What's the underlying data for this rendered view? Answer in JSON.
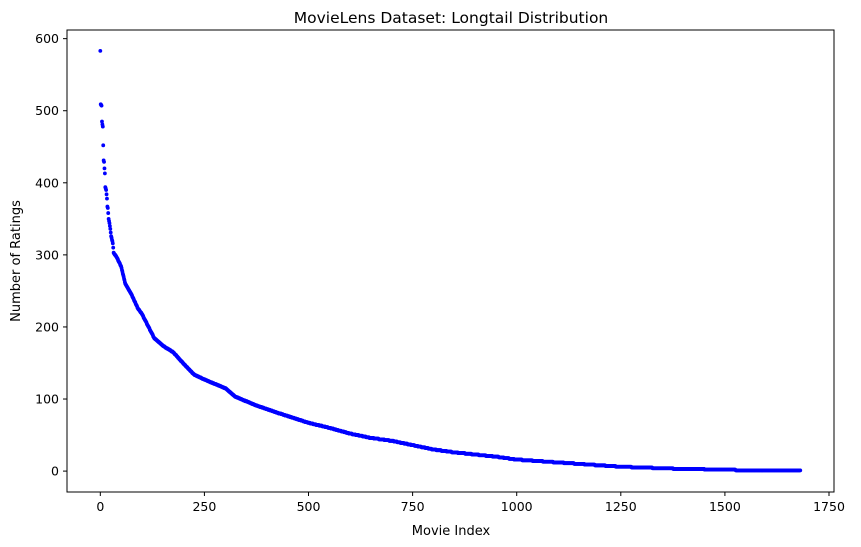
{
  "chart_data": {
    "type": "scatter",
    "title": "MovieLens Dataset: Longtail Distribution",
    "xlabel": "Movie Index",
    "ylabel": "Number of Ratings",
    "xlim": [
      -80,
      1762
    ],
    "ylim": [
      -29,
      612
    ],
    "xticks": [
      0,
      250,
      500,
      750,
      1000,
      1250,
      1500,
      1750
    ],
    "yticks": [
      0,
      100,
      200,
      300,
      400,
      500,
      600
    ],
    "grid": false,
    "legend": "none",
    "point_color": "#0000ff",
    "n_points": 1682,
    "decay_anchors": [
      [
        0,
        583
      ],
      [
        1,
        509
      ],
      [
        2,
        508
      ],
      [
        3,
        507
      ],
      [
        4,
        485
      ],
      [
        5,
        481
      ],
      [
        6,
        478
      ],
      [
        7,
        452
      ],
      [
        8,
        431
      ],
      [
        9,
        429
      ],
      [
        10,
        420
      ],
      [
        11,
        413
      ],
      [
        12,
        394
      ],
      [
        13,
        392
      ],
      [
        14,
        390
      ],
      [
        15,
        384
      ],
      [
        16,
        378
      ],
      [
        17,
        367
      ],
      [
        18,
        365
      ],
      [
        20,
        350
      ],
      [
        22,
        344
      ],
      [
        24,
        336
      ],
      [
        26,
        326
      ],
      [
        28,
        321
      ],
      [
        30,
        316
      ],
      [
        32,
        303
      ],
      [
        40,
        296
      ],
      [
        50,
        284
      ],
      [
        60,
        260
      ],
      [
        75,
        245
      ],
      [
        90,
        226
      ],
      [
        100,
        218
      ],
      [
        130,
        184
      ],
      [
        150,
        174
      ],
      [
        175,
        165
      ],
      [
        200,
        149
      ],
      [
        225,
        134
      ],
      [
        250,
        127
      ],
      [
        300,
        115
      ],
      [
        325,
        103
      ],
      [
        375,
        91
      ],
      [
        425,
        81
      ],
      [
        500,
        67
      ],
      [
        550,
        60
      ],
      [
        600,
        52
      ],
      [
        650,
        46
      ],
      [
        700,
        42
      ],
      [
        750,
        36
      ],
      [
        800,
        30
      ],
      [
        850,
        26
      ],
      [
        900,
        23
      ],
      [
        950,
        20
      ],
      [
        1000,
        16
      ],
      [
        1100,
        12
      ],
      [
        1200,
        8
      ],
      [
        1250,
        6
      ],
      [
        1300,
        5
      ],
      [
        1400,
        3
      ],
      [
        1500,
        2
      ],
      [
        1550,
        1
      ],
      [
        1682,
        1
      ]
    ]
  }
}
